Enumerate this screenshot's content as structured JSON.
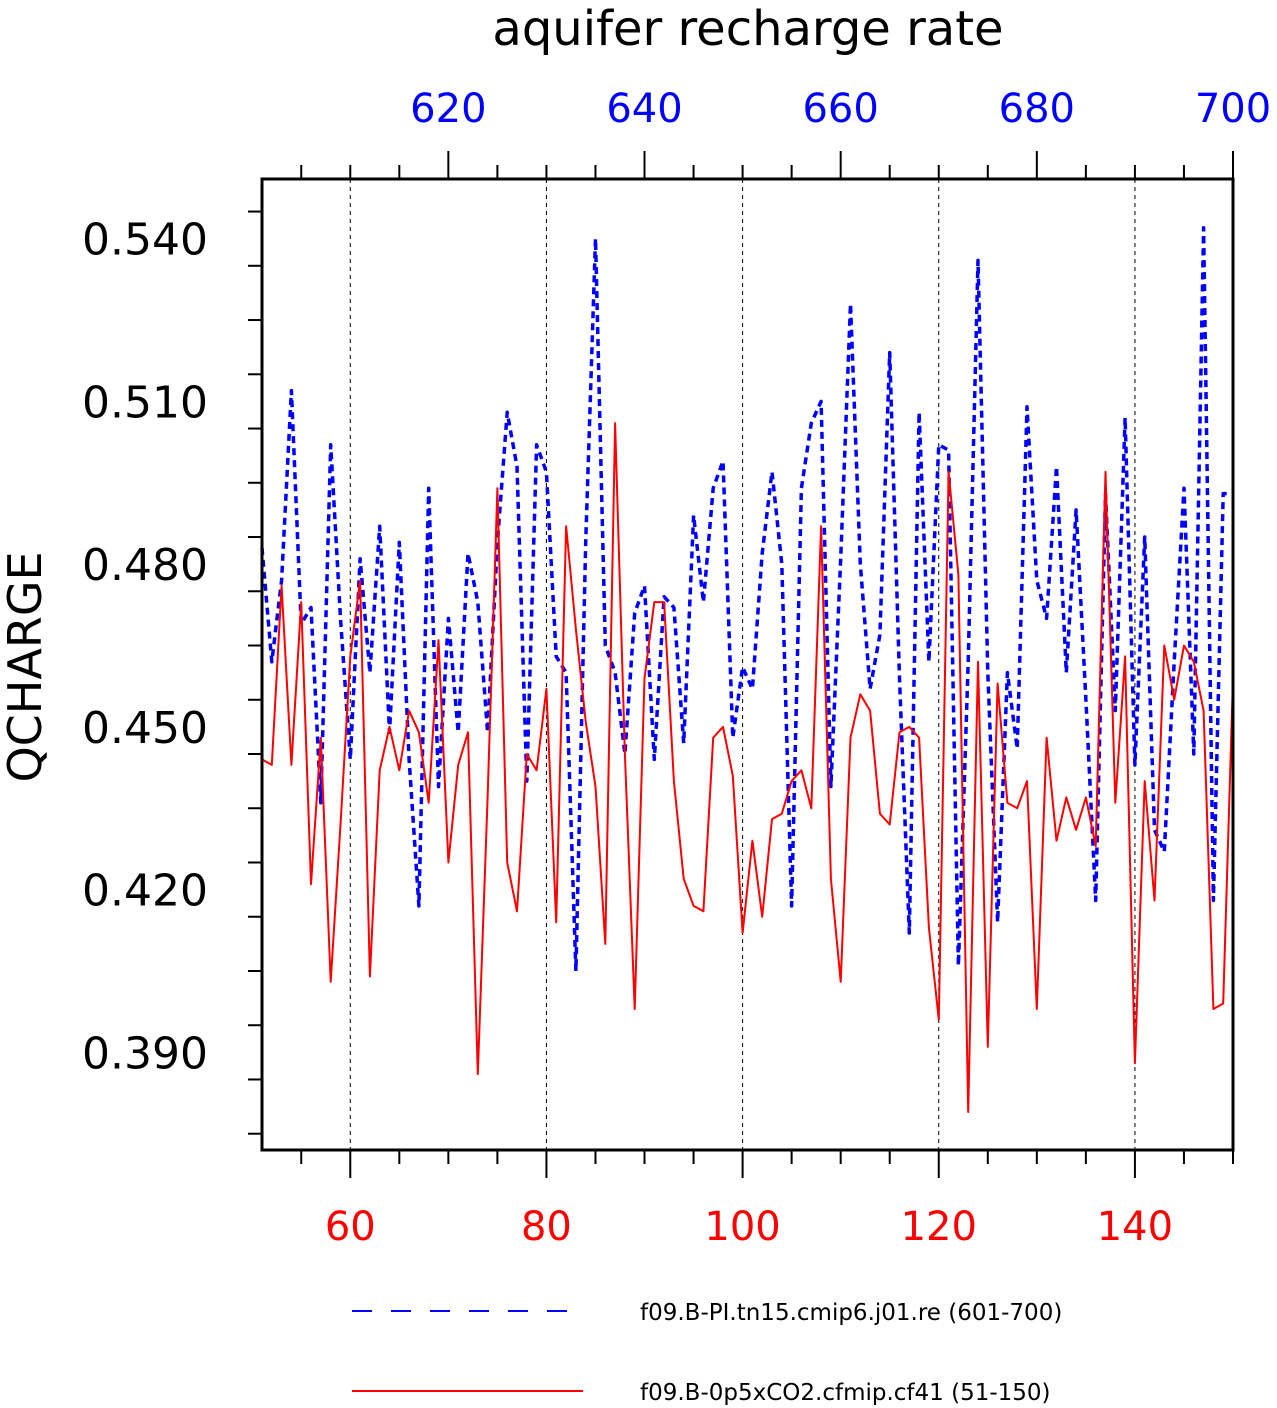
{
  "chart_data": {
    "type": "line",
    "title": "aquifer recharge rate",
    "ylabel": "QCHARGE",
    "ylim": [
      0.372,
      0.551
    ],
    "yticks": [
      0.39,
      0.42,
      0.45,
      0.48,
      0.51,
      0.54
    ],
    "ytick_labels": [
      "0.390",
      "0.420",
      "0.450",
      "0.480",
      "0.510",
      "0.540"
    ],
    "bottom_axis": {
      "range": [
        51,
        150
      ],
      "ticks": [
        60,
        80,
        100,
        120,
        140
      ],
      "tick_labels": [
        "60",
        "80",
        "100",
        "120",
        "140"
      ],
      "color": "#ff0000"
    },
    "top_axis": {
      "range": [
        601,
        700
      ],
      "ticks": [
        620,
        640,
        660,
        680,
        700
      ],
      "tick_labels": [
        "620",
        "640",
        "660",
        "680",
        "700"
      ],
      "color": "#0000ff"
    },
    "grid": "vertical dashed at major ticks",
    "legend_position": "bottom",
    "series": [
      {
        "name": "f09.B-PI.tn15.cmip6.j01.re (601-700)",
        "axis": "top",
        "color": "#0000ff",
        "style": "dashed",
        "x_start": 601,
        "values": [
          0.483,
          0.462,
          0.477,
          0.512,
          0.469,
          0.472,
          0.436,
          0.502,
          0.47,
          0.444,
          0.481,
          0.46,
          0.487,
          0.449,
          0.484,
          0.444,
          0.417,
          0.494,
          0.439,
          0.47,
          0.449,
          0.482,
          0.473,
          0.449,
          0.484,
          0.508,
          0.498,
          0.44,
          0.502,
          0.497,
          0.463,
          0.46,
          0.405,
          0.484,
          0.54,
          0.465,
          0.46,
          0.445,
          0.471,
          0.476,
          0.444,
          0.474,
          0.472,
          0.447,
          0.489,
          0.473,
          0.494,
          0.499,
          0.448,
          0.461,
          0.457,
          0.482,
          0.497,
          0.48,
          0.417,
          0.494,
          0.506,
          0.51,
          0.439,
          0.481,
          0.528,
          0.48,
          0.457,
          0.467,
          0.519,
          0.459,
          0.412,
          0.508,
          0.462,
          0.502,
          0.501,
          0.406,
          0.462,
          0.536,
          0.46,
          0.414,
          0.46,
          0.446,
          0.509,
          0.477,
          0.47,
          0.498,
          0.46,
          0.49,
          0.455,
          0.418,
          0.493,
          0.453,
          0.507,
          0.443,
          0.485,
          0.431,
          0.427,
          0.462,
          0.494,
          0.445,
          0.542,
          0.418,
          0.493,
          0.493
        ]
      },
      {
        "name": "f09.B-0p5xCO2.cfmip.cf41 (51-150)",
        "axis": "bottom",
        "color": "#ff0000",
        "style": "solid",
        "x_start": 51,
        "values": [
          0.444,
          0.443,
          0.476,
          0.443,
          0.473,
          0.421,
          0.448,
          0.403,
          0.432,
          0.463,
          0.477,
          0.404,
          0.442,
          0.45,
          0.442,
          0.453,
          0.449,
          0.436,
          0.466,
          0.425,
          0.443,
          0.449,
          0.386,
          0.437,
          0.494,
          0.425,
          0.416,
          0.445,
          0.442,
          0.457,
          0.414,
          0.487,
          0.468,
          0.451,
          0.439,
          0.41,
          0.506,
          0.445,
          0.398,
          0.459,
          0.473,
          0.473,
          0.44,
          0.422,
          0.417,
          0.416,
          0.448,
          0.45,
          0.441,
          0.412,
          0.429,
          0.415,
          0.433,
          0.434,
          0.44,
          0.442,
          0.435,
          0.487,
          0.422,
          0.403,
          0.448,
          0.456,
          0.453,
          0.434,
          0.432,
          0.449,
          0.45,
          0.448,
          0.413,
          0.396,
          0.497,
          0.478,
          0.379,
          0.462,
          0.391,
          0.458,
          0.436,
          0.435,
          0.44,
          0.398,
          0.448,
          0.429,
          0.437,
          0.431,
          0.437,
          0.428,
          0.497,
          0.436,
          0.463,
          0.388,
          0.44,
          0.418,
          0.465,
          0.455,
          0.465,
          0.462,
          0.453,
          0.398,
          0.399,
          0.459
        ]
      }
    ]
  }
}
